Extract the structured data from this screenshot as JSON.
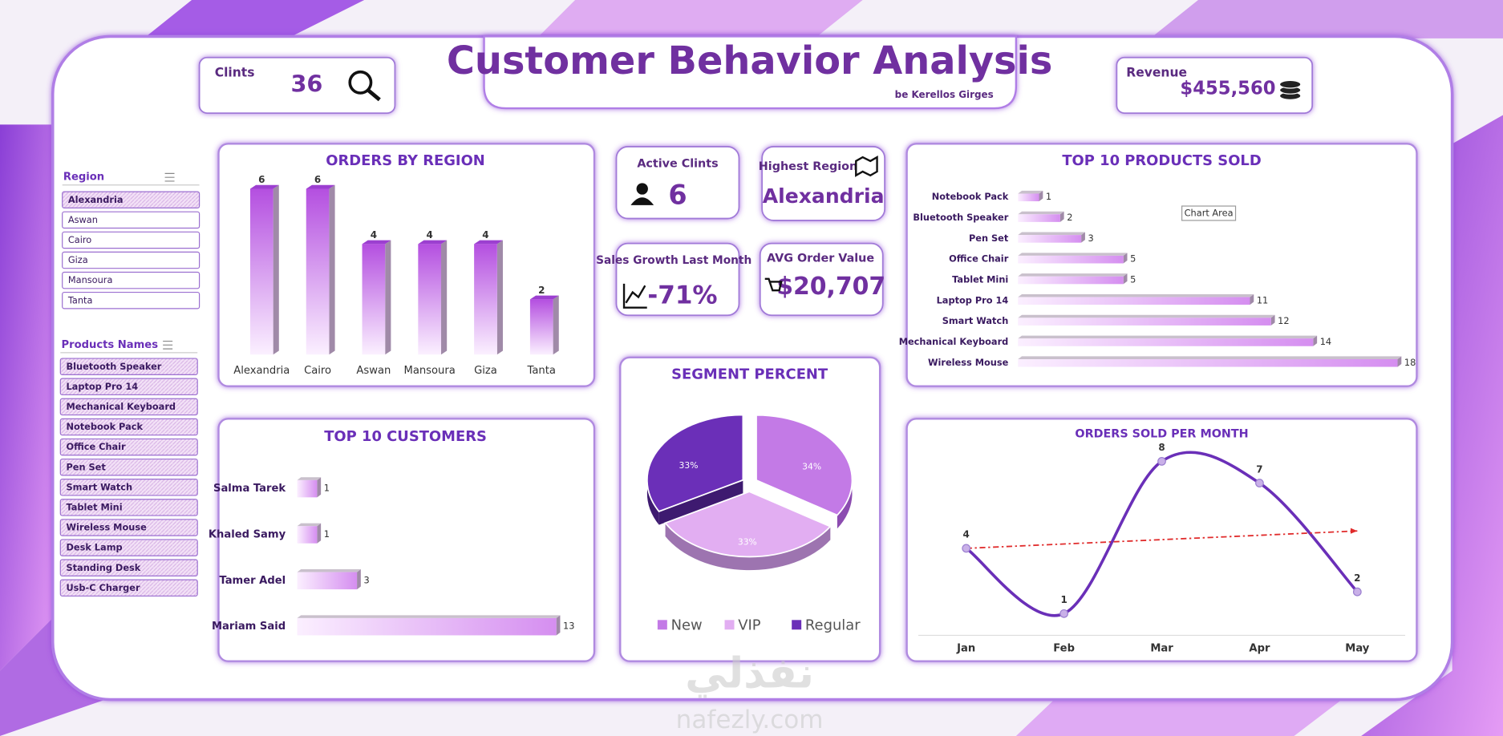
{
  "header": {
    "title": "Customer Behavior Analysis",
    "subtitle": "be Kerellos Girges"
  },
  "kpis": {
    "clients": {
      "label": "Clints",
      "value": 36
    },
    "revenue": {
      "label": "Revenue",
      "value": "$455,560"
    },
    "active": {
      "label": "Active Clints",
      "value": 6
    },
    "highest_region": {
      "label": "Highest Region",
      "value": "Alexandria"
    },
    "growth": {
      "label": "Sales Growth Last Month",
      "value": "-71%"
    },
    "avg_order": {
      "label": "AVG Order Value",
      "value": "$20,707"
    }
  },
  "slicers": [
    {
      "title": "Region",
      "items": [
        "Alexandria",
        "Aswan",
        "Cairo",
        "Giza",
        "Mansoura",
        "Tanta"
      ],
      "selected": [
        0
      ]
    },
    {
      "title": "Products Names",
      "items": [
        "Bluetooth Speaker",
        "Laptop Pro 14",
        "Mechanical Keyboard",
        "Notebook Pack",
        "Office Chair",
        "Pen Set",
        "Smart Watch",
        "Tablet Mini",
        "Wireless Mouse",
        "Desk Lamp",
        "Standing Desk",
        "Usb-C Charger"
      ],
      "selected": [
        0,
        1,
        2,
        3,
        4,
        5,
        6,
        7,
        8,
        9,
        10,
        11
      ]
    }
  ],
  "watermark": {
    "arabic": "نفذلي",
    "latin": "nafezly.com"
  },
  "chart_data": [
    {
      "type": "bar",
      "title": "ORDERS BY REGION",
      "categories": [
        "Alexandria",
        "Cairo",
        "Aswan",
        "Mansoura",
        "Giza",
        "Tanta"
      ],
      "values": [
        6,
        6,
        4,
        4,
        4,
        2
      ],
      "color": "#b44fe0"
    },
    {
      "type": "hbar",
      "title": "TOP 10 PRODUCTS SOLD",
      "categories": [
        "Notebook Pack",
        "Bluetooth Speaker",
        "Pen Set",
        "Office Chair",
        "Tablet Mini",
        "Laptop Pro 14",
        "Smart Watch",
        "Mechanical Keyboard",
        "Wireless Mouse"
      ],
      "values": [
        1,
        2,
        3,
        5,
        5,
        11,
        12,
        14,
        18
      ],
      "color": "#d58ef0",
      "tooltip": "Chart Area"
    },
    {
      "type": "hbar",
      "title": "TOP 10 CUSTOMERS",
      "categories": [
        "Salma Tarek",
        "Khaled Samy",
        "Tamer Adel",
        "Mariam Said"
      ],
      "values": [
        1,
        1,
        3,
        13
      ],
      "color": "#d58ef0"
    },
    {
      "type": "pie",
      "title": "SEGMENT PERCENT",
      "categories": [
        "New",
        "VIP",
        "Regular"
      ],
      "values": [
        34,
        33,
        33
      ],
      "value_labels": [
        "34%",
        "33%",
        "33%"
      ],
      "colors": [
        "#c37ae6",
        "#e2aef2",
        "#6b2fb8"
      ]
    },
    {
      "type": "line",
      "title": "ORDERS SOLD PER MONTH",
      "categories": [
        "Jan",
        "Feb",
        "Mar",
        "Apr",
        "May"
      ],
      "values": [
        4,
        1,
        8,
        7,
        2
      ],
      "color": "#6a2fb8",
      "trendline": {
        "color": "#e02b2b"
      }
    }
  ]
}
